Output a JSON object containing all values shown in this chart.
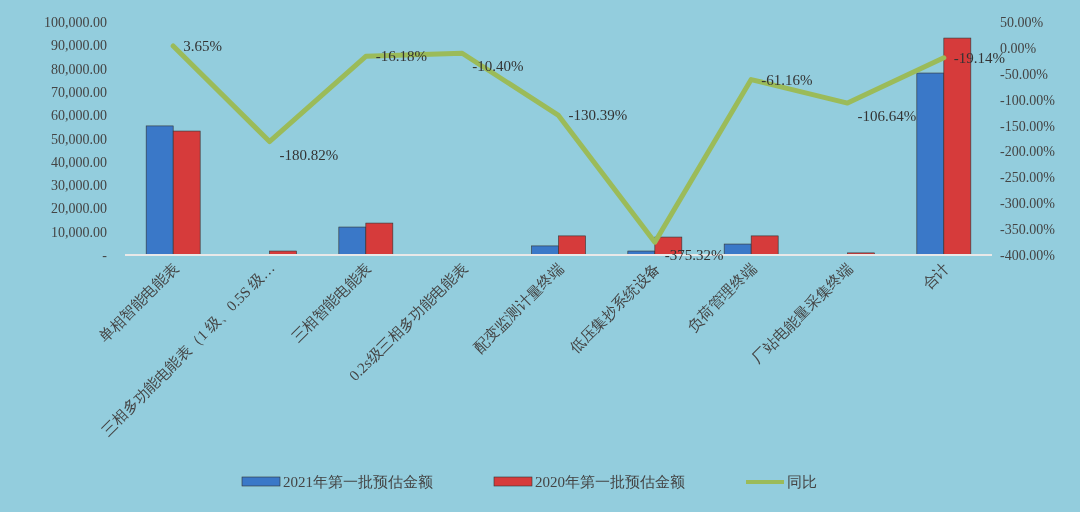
{
  "chart_data": {
    "type": "bar",
    "categories": [
      "单相智能电能表",
      "三相多功能电能表（1 级、0.5S 级…",
      "三相智能电能表",
      "0.2s级三相多功能电能表",
      "配变监测计量终端",
      "低压集抄系统设备",
      "负荷管理终端",
      "厂站电能量采集终端",
      "合计"
    ],
    "series": [
      {
        "name": "2021年第一批预估金额",
        "color": "#3a78c8",
        "values": [
          55400,
          300,
          12000,
          0,
          3900,
          1700,
          4700,
          0,
          78100
        ]
      },
      {
        "name": "2020年第一批预估金额",
        "color": "#d63b3b",
        "values": [
          53200,
          1700,
          13700,
          0,
          8200,
          7700,
          8200,
          900,
          93100
        ]
      },
      {
        "name": "同比",
        "type": "line",
        "axis": "y2",
        "color": "#9bbb59",
        "values": [
          3.65,
          -180.82,
          -16.18,
          -10.4,
          -130.39,
          -375.32,
          -61.16,
          -106.64,
          -19.14
        ],
        "value_labels": [
          "3.65%",
          "-180.82%",
          "-16.18%",
          "-10.40%",
          "-130.39%",
          "-375.32%",
          "-61.16%",
          "-106.64%",
          "-19.14%"
        ]
      }
    ],
    "ylim": [
      0,
      100000
    ],
    "yticks": [
      {
        "value": 0,
        "label": "-"
      },
      {
        "value": 10000,
        "label": "10,000.00"
      },
      {
        "value": 20000,
        "label": "20,000.00"
      },
      {
        "value": 30000,
        "label": "30,000.00"
      },
      {
        "value": 40000,
        "label": "40,000.00"
      },
      {
        "value": 50000,
        "label": "50,000.00"
      },
      {
        "value": 60000,
        "label": "60,000.00"
      },
      {
        "value": 70000,
        "label": "70,000.00"
      },
      {
        "value": 80000,
        "label": "80,000.00"
      },
      {
        "value": 90000,
        "label": "90,000.00"
      },
      {
        "value": 100000,
        "label": "100,000.00"
      }
    ],
    "y2lim": [
      -400,
      50
    ],
    "y2ticks": [
      {
        "value": 50,
        "label": "50.00%"
      },
      {
        "value": 0,
        "label": "0.00%"
      },
      {
        "value": -50,
        "label": "-50.00%"
      },
      {
        "value": -100,
        "label": "-100.00%"
      },
      {
        "value": -150,
        "label": "-150.00%"
      },
      {
        "value": -200,
        "label": "-200.00%"
      },
      {
        "value": -250,
        "label": "-250.00%"
      },
      {
        "value": -300,
        "label": "-300.00%"
      },
      {
        "value": -350,
        "label": "-350.00%"
      },
      {
        "value": -400,
        "label": "-400.00%"
      }
    ],
    "legend": "bottom"
  }
}
